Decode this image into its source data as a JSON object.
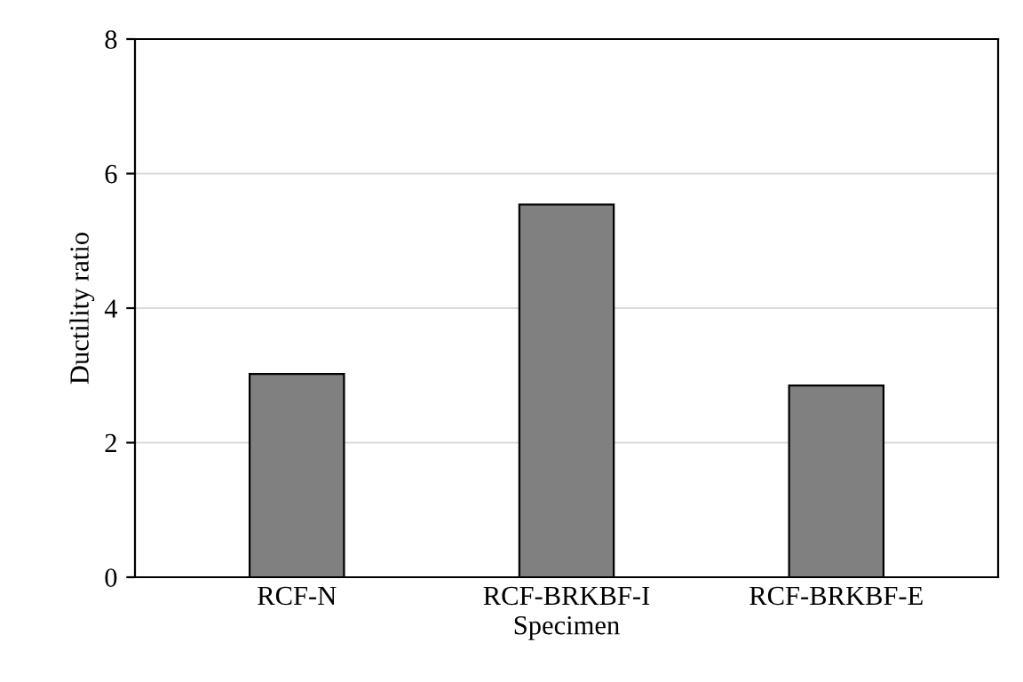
{
  "chart_data": {
    "type": "bar",
    "xlabel": "Specimen",
    "ylabel": "Ductility ratio",
    "categories": [
      "RCF-N",
      "RCF-BRKBF-I",
      "RCF-BRKBF-E"
    ],
    "values": [
      3.02,
      5.54,
      2.85
    ],
    "color": "#808080",
    "ylim": [
      0,
      8
    ],
    "yticks": [
      0,
      2,
      4,
      6,
      8
    ],
    "grid": "y"
  }
}
